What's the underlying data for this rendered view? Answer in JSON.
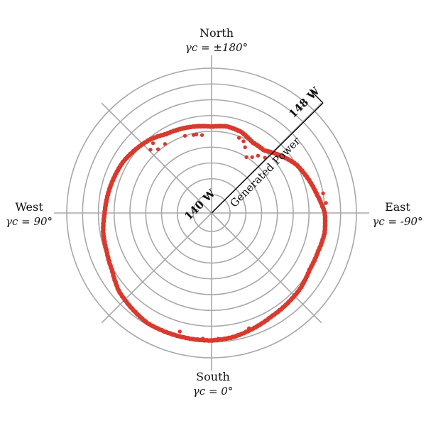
{
  "chart_data": {
    "type": "scatter",
    "polar": true,
    "radial_axis": {
      "label": "Generated Power",
      "min_label": "140 W",
      "max_label": "148 W",
      "range": [
        140,
        148
      ],
      "unit": "W",
      "rings": 8
    },
    "directions": {
      "north": {
        "name": "North",
        "gamma": "γc = ±180°"
      },
      "south": {
        "name": "South",
        "gamma": "γc = 0°"
      },
      "east": {
        "name": "East",
        "gamma": "γc = -90°"
      },
      "west": {
        "name": "West",
        "gamma": "γc = 90°"
      }
    },
    "angle_convention": "gamma_c in degrees: 0 = South, 90 = West, -90 = East, ±180 = North",
    "colors": {
      "grid": "#a8a8a8",
      "points": "#d83a2e",
      "axis": "#000000"
    },
    "series_points": [
      [
        0,
        146.9
      ],
      [
        10,
        146.9
      ],
      [
        20,
        146.9
      ],
      [
        30,
        146.9
      ],
      [
        40,
        146.7
      ],
      [
        50,
        146.5
      ],
      [
        60,
        146.1
      ],
      [
        70,
        145.9
      ],
      [
        80,
        145.8
      ],
      [
        90,
        145.6
      ],
      [
        100,
        145.5
      ],
      [
        110,
        145.4
      ],
      [
        120,
        145.3
      ],
      [
        130,
        145.1
      ],
      [
        140,
        144.9
      ],
      [
        150,
        144.6
      ],
      [
        160,
        144.5
      ],
      [
        170,
        144.4
      ],
      [
        180,
        144.3
      ],
      [
        -170,
        144.4
      ],
      [
        -160,
        144.3
      ],
      [
        -150,
        144.0
      ],
      [
        -140,
        144.0
      ],
      [
        -130,
        144.5
      ],
      [
        -120,
        145.0
      ],
      [
        -110,
        145.3
      ],
      [
        -100,
        145.6
      ],
      [
        -90,
        146.0
      ],
      [
        -80,
        146.1
      ],
      [
        -70,
        146.0
      ],
      [
        -60,
        146.0
      ],
      [
        -50,
        146.2
      ],
      [
        -40,
        146.3
      ],
      [
        -30,
        146.4
      ],
      [
        -20,
        146.6
      ],
      [
        -10,
        146.8
      ]
    ],
    "outlier_points": [
      [
        173,
        143.8
      ],
      [
        169,
        143.9
      ],
      [
        167,
        143.9
      ],
      [
        161,
        144.0
      ],
      [
        146,
        144.1
      ],
      [
        140,
        144.1
      ],
      [
        136,
        144.4
      ],
      [
        140,
        144.6
      ],
      [
        -160,
        143.9
      ],
      [
        -156,
        143.8
      ],
      [
        -153,
        143.5
      ],
      [
        -148,
        143.0
      ],
      [
        -144,
        143.2
      ],
      [
        -141,
        143.5
      ],
      [
        -136,
        143.7
      ],
      [
        -100,
        146.0
      ],
      [
        -95,
        146.1
      ],
      [
        -3,
        146.8
      ],
      [
        4,
        146.8
      ],
      [
        15,
        146.6
      ],
      [
        -18,
        146.5
      ]
    ]
  }
}
